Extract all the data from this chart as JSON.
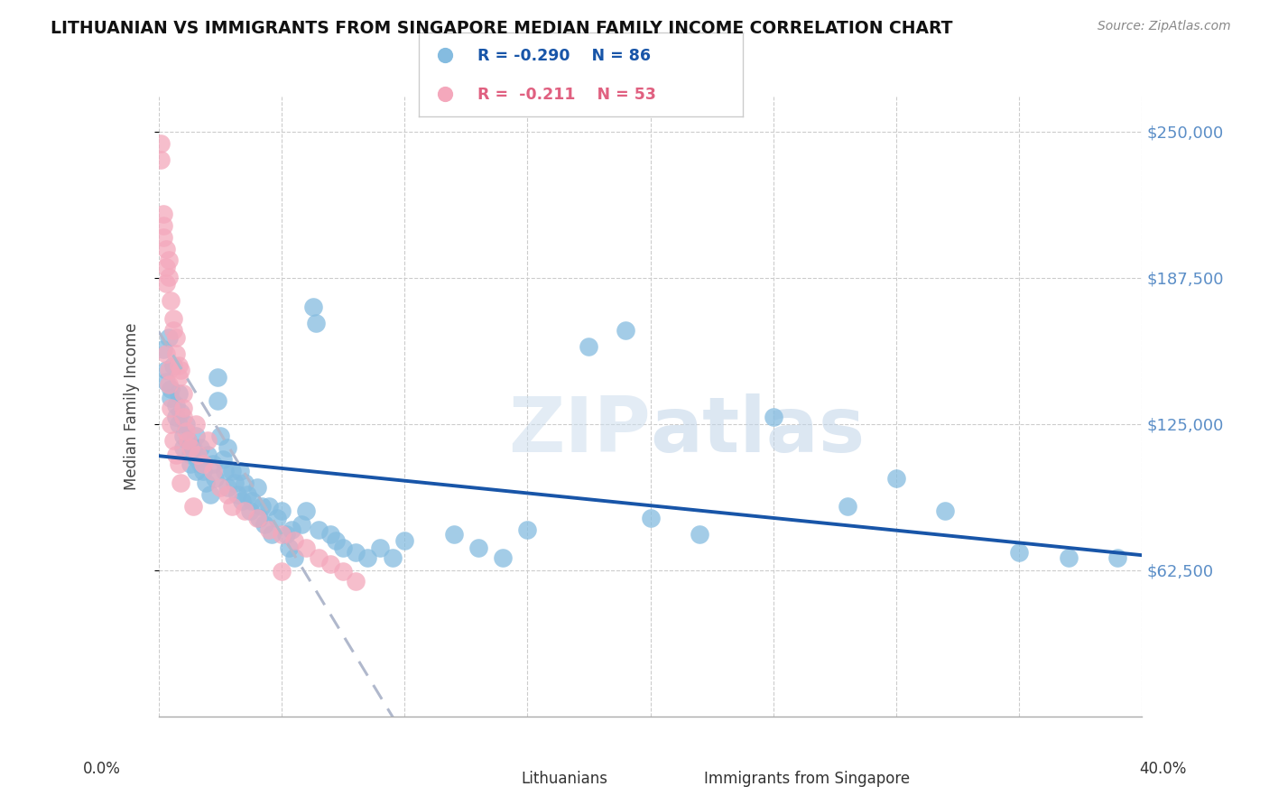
{
  "title": "LITHUANIAN VS IMMIGRANTS FROM SINGAPORE MEDIAN FAMILY INCOME CORRELATION CHART",
  "source": "Source: ZipAtlas.com",
  "ylabel": "Median Family Income",
  "watermark_zip": "ZIP",
  "watermark_atlas": "atlas",
  "legend_blue_r": "R = -0.290",
  "legend_blue_n": "N = 86",
  "legend_pink_r": "R =  -0.211",
  "legend_pink_n": "N = 53",
  "blue_color": "#85bce0",
  "pink_color": "#f4a8bc",
  "trend_blue_color": "#1855a8",
  "trend_pink_color": "#b0b8cc",
  "ylim": [
    0,
    265000
  ],
  "xlim": [
    0.0,
    0.4
  ],
  "ytick_vals": [
    62500,
    125000,
    187500,
    250000
  ],
  "ytick_labels": [
    "$62,500",
    "$125,000",
    "$187,500",
    "$250,000"
  ],
  "blue_dots": [
    [
      0.002,
      157000
    ],
    [
      0.003,
      148000
    ],
    [
      0.003,
      143000
    ],
    [
      0.004,
      162000
    ],
    [
      0.005,
      140000
    ],
    [
      0.005,
      136000
    ],
    [
      0.006,
      150000
    ],
    [
      0.007,
      133000
    ],
    [
      0.007,
      128000
    ],
    [
      0.008,
      138000
    ],
    [
      0.008,
      125000
    ],
    [
      0.009,
      130000
    ],
    [
      0.01,
      120000
    ],
    [
      0.01,
      115000
    ],
    [
      0.011,
      125000
    ],
    [
      0.012,
      118000
    ],
    [
      0.013,
      112000
    ],
    [
      0.013,
      108000
    ],
    [
      0.014,
      115000
    ],
    [
      0.015,
      105000
    ],
    [
      0.015,
      120000
    ],
    [
      0.016,
      110000
    ],
    [
      0.017,
      108000
    ],
    [
      0.017,
      115000
    ],
    [
      0.018,
      105000
    ],
    [
      0.019,
      100000
    ],
    [
      0.02,
      112000
    ],
    [
      0.021,
      95000
    ],
    [
      0.022,
      108000
    ],
    [
      0.023,
      102000
    ],
    [
      0.024,
      145000
    ],
    [
      0.024,
      135000
    ],
    [
      0.025,
      120000
    ],
    [
      0.026,
      110000
    ],
    [
      0.027,
      105000
    ],
    [
      0.028,
      98000
    ],
    [
      0.028,
      115000
    ],
    [
      0.03,
      105000
    ],
    [
      0.031,
      100000
    ],
    [
      0.032,
      95000
    ],
    [
      0.033,
      105000
    ],
    [
      0.034,
      92000
    ],
    [
      0.035,
      100000
    ],
    [
      0.036,
      95000
    ],
    [
      0.037,
      88000
    ],
    [
      0.038,
      92000
    ],
    [
      0.04,
      98000
    ],
    [
      0.041,
      85000
    ],
    [
      0.042,
      90000
    ],
    [
      0.043,
      82000
    ],
    [
      0.045,
      90000
    ],
    [
      0.046,
      78000
    ],
    [
      0.048,
      85000
    ],
    [
      0.05,
      88000
    ],
    [
      0.052,
      78000
    ],
    [
      0.053,
      72000
    ],
    [
      0.054,
      80000
    ],
    [
      0.055,
      68000
    ],
    [
      0.058,
      82000
    ],
    [
      0.06,
      88000
    ],
    [
      0.063,
      175000
    ],
    [
      0.064,
      168000
    ],
    [
      0.065,
      80000
    ],
    [
      0.07,
      78000
    ],
    [
      0.072,
      75000
    ],
    [
      0.075,
      72000
    ],
    [
      0.08,
      70000
    ],
    [
      0.085,
      68000
    ],
    [
      0.09,
      72000
    ],
    [
      0.095,
      68000
    ],
    [
      0.1,
      75000
    ],
    [
      0.12,
      78000
    ],
    [
      0.13,
      72000
    ],
    [
      0.14,
      68000
    ],
    [
      0.15,
      80000
    ],
    [
      0.175,
      158000
    ],
    [
      0.19,
      165000
    ],
    [
      0.2,
      85000
    ],
    [
      0.22,
      78000
    ],
    [
      0.25,
      128000
    ],
    [
      0.28,
      90000
    ],
    [
      0.3,
      102000
    ],
    [
      0.32,
      88000
    ],
    [
      0.35,
      70000
    ],
    [
      0.37,
      68000
    ],
    [
      0.39,
      68000
    ]
  ],
  "pink_dots": [
    [
      0.001,
      245000
    ],
    [
      0.001,
      238000
    ],
    [
      0.002,
      215000
    ],
    [
      0.002,
      210000
    ],
    [
      0.002,
      205000
    ],
    [
      0.003,
      200000
    ],
    [
      0.003,
      192000
    ],
    [
      0.003,
      185000
    ],
    [
      0.003,
      155000
    ],
    [
      0.004,
      195000
    ],
    [
      0.004,
      188000
    ],
    [
      0.004,
      148000
    ],
    [
      0.004,
      142000
    ],
    [
      0.005,
      178000
    ],
    [
      0.005,
      132000
    ],
    [
      0.005,
      125000
    ],
    [
      0.006,
      170000
    ],
    [
      0.006,
      165000
    ],
    [
      0.006,
      118000
    ],
    [
      0.007,
      162000
    ],
    [
      0.007,
      155000
    ],
    [
      0.007,
      112000
    ],
    [
      0.008,
      150000
    ],
    [
      0.008,
      145000
    ],
    [
      0.008,
      108000
    ],
    [
      0.009,
      148000
    ],
    [
      0.009,
      100000
    ],
    [
      0.01,
      138000
    ],
    [
      0.01,
      132000
    ],
    [
      0.01,
      128000
    ],
    [
      0.011,
      122000
    ],
    [
      0.012,
      118000
    ],
    [
      0.013,
      115000
    ],
    [
      0.014,
      90000
    ],
    [
      0.015,
      125000
    ],
    [
      0.016,
      112000
    ],
    [
      0.018,
      108000
    ],
    [
      0.02,
      118000
    ],
    [
      0.022,
      105000
    ],
    [
      0.025,
      98000
    ],
    [
      0.028,
      95000
    ],
    [
      0.03,
      90000
    ],
    [
      0.035,
      88000
    ],
    [
      0.04,
      85000
    ],
    [
      0.045,
      80000
    ],
    [
      0.05,
      78000
    ],
    [
      0.055,
      75000
    ],
    [
      0.06,
      72000
    ],
    [
      0.065,
      68000
    ],
    [
      0.07,
      65000
    ],
    [
      0.075,
      62000
    ],
    [
      0.08,
      58000
    ],
    [
      0.05,
      62000
    ]
  ]
}
